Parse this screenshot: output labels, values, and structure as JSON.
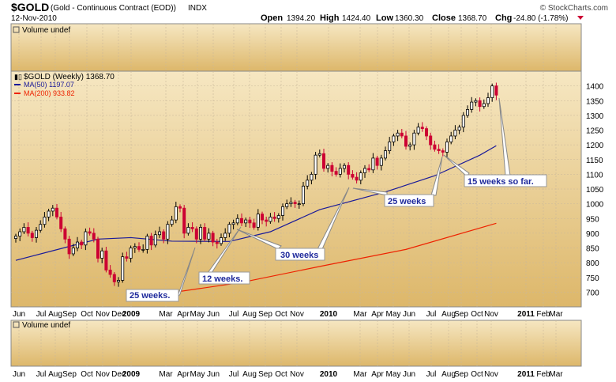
{
  "header": {
    "symbol": "$GOLD",
    "name": "(Gold - Continuous Contract (EOD))",
    "exchange": "INDX",
    "date": "12-Nov-2010",
    "watermark": "© StockCharts.com",
    "open_label": "Open",
    "open": "1394.20",
    "high_label": "High",
    "high": "1424.40",
    "low_label": "Low",
    "low": "1360.30",
    "close_label": "Close",
    "close": "1368.70",
    "chg_label": "Chg",
    "chg": "-24.80 (-1.78%)"
  },
  "colors": {
    "up": "#000000",
    "down": "#cc0033",
    "ma50": "#1a1a99",
    "ma200": "#ee2200",
    "panel_top": "#f6e7c2",
    "panel_bottom": "#ddb76a"
  },
  "panels": {
    "volume_top": "Volume undef",
    "volume_bottom": "Volume undef"
  },
  "legend": {
    "price": "$GOLD (Weekly) 1368.70",
    "ma50": "MA(50) 1197.07",
    "ma200": "MA(200) 933.82"
  },
  "annotations": [
    "25 weeks.",
    "12 weeks.",
    "30 weeks",
    "25 weeks",
    "15 weeks so far."
  ],
  "chart_data": {
    "type": "candlestick",
    "interval": "weekly",
    "ylim": [
      650,
      1450
    ],
    "y_ticks": [
      700,
      750,
      800,
      850,
      900,
      950,
      1000,
      1050,
      1100,
      1150,
      1200,
      1250,
      1300,
      1350,
      1400
    ],
    "grid": true,
    "x_tick_labels": [
      "Jun",
      "Jul",
      "Aug",
      "Sep",
      "Oct",
      "Nov",
      "Dec",
      "2009",
      "Mar",
      "Apr",
      "May",
      "Jun",
      "Jul",
      "Aug",
      "Sep",
      "Oct",
      "Nov",
      "2010",
      "Mar",
      "Apr",
      "May",
      "Jun",
      "Jul",
      "Aug",
      "Sep",
      "Oct",
      "Nov",
      "2011",
      "Feb",
      "Mar"
    ],
    "series": [
      {
        "name": "$GOLD (Weekly)",
        "kind": "candles",
        "close": [
          890,
          905,
          920,
          900,
          885,
          910,
          930,
          955,
          975,
          985,
          955,
          915,
          880,
          830,
          850,
          870,
          860,
          905,
          900,
          880,
          815,
          840,
          775,
          760,
          735,
          740,
          820,
          815,
          850,
          855,
          845,
          845,
          890,
          860,
          895,
          905,
          880,
          930,
          945,
          990,
          985,
          900,
          920,
          915,
          880,
          920,
          880,
          900,
          870,
          865,
          885,
          900,
          930,
          935,
          950,
          935,
          945,
          935,
          920,
          965,
          945,
          940,
          955,
          950,
          960,
          990,
          1000,
          1005,
          1000,
          1000,
          1060,
          1080,
          1100,
          1165,
          1170,
          1120,
          1130,
          1110,
          1100,
          1120,
          1130,
          1100,
          1090,
          1080,
          1105,
          1120,
          1115,
          1155,
          1130,
          1155,
          1180,
          1210,
          1230,
          1240,
          1230,
          1195,
          1200,
          1240,
          1260,
          1255,
          1230,
          1200,
          1185,
          1180,
          1175,
          1210,
          1230,
          1250,
          1260,
          1300,
          1320,
          1345,
          1350,
          1330,
          1340,
          1360,
          1400,
          1368.7
        ]
      },
      {
        "name": "MA(50)",
        "kind": "line",
        "values": [
          {
            "x": 0,
            "v": 808
          },
          {
            "x": 13,
            "v": 855
          },
          {
            "x": 20,
            "v": 880
          },
          {
            "x": 28,
            "v": 885
          },
          {
            "x": 38,
            "v": 873
          },
          {
            "x": 52,
            "v": 872
          },
          {
            "x": 62,
            "v": 905
          },
          {
            "x": 74,
            "v": 980
          },
          {
            "x": 90,
            "v": 1040
          },
          {
            "x": 102,
            "v": 1095
          },
          {
            "x": 113,
            "v": 1165
          },
          {
            "x": 117,
            "v": 1197.07
          }
        ]
      },
      {
        "name": "MA(200)",
        "kind": "line",
        "values": [
          {
            "x": 30,
            "v": 682
          },
          {
            "x": 55,
            "v": 733
          },
          {
            "x": 75,
            "v": 790
          },
          {
            "x": 95,
            "v": 845
          },
          {
            "x": 117,
            "v": 933.82
          }
        ]
      }
    ]
  }
}
